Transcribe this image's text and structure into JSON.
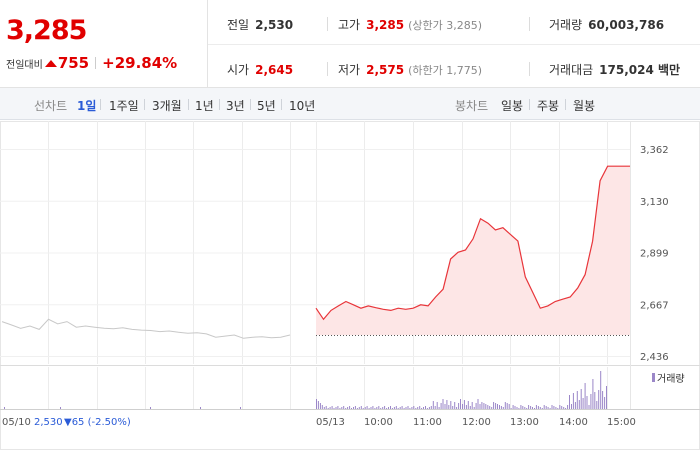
{
  "summary": {
    "price": "3,285",
    "change_label": "전일대비",
    "change_abs": "755",
    "change_pct": "+29.84%",
    "prev_close": {
      "label": "전일",
      "value": "2,530"
    },
    "open": {
      "label": "시가",
      "value": "2,645"
    },
    "high": {
      "label": "고가",
      "value": "3,285",
      "note": "(상한가 3,285)"
    },
    "low": {
      "label": "저가",
      "value": "2,575",
      "note": "(하한가 1,775)"
    },
    "volume": {
      "label": "거래량",
      "value": "60,003,786"
    },
    "turnover": {
      "label": "거래대금",
      "value": "175,024 백만"
    }
  },
  "toolbar": {
    "line_chart_label": "선차트",
    "periods": [
      "1일",
      "1주일",
      "3개월",
      "1년",
      "3년",
      "5년",
      "10년"
    ],
    "active_period": "1일",
    "candle_chart_label": "봉차트",
    "candle_periods": [
      "일봉",
      "주봉",
      "월봉"
    ]
  },
  "chart_data": {
    "type": "line",
    "y_ticks": [
      "3,362",
      "3,130",
      "2,899",
      "2,667",
      "2,436"
    ],
    "ylim": [
      2436,
      3362
    ],
    "x_ticks": [
      "05/13",
      "10:00",
      "11:00",
      "12:00",
      "13:00",
      "14:00",
      "15:00"
    ],
    "prev_day_label": "05/10",
    "prev_day_close": "2,530",
    "prev_day_change": "▼65 (-2.50%)",
    "volume_legend": "거래량",
    "colors": {
      "today": "#e8353a",
      "today_fill": "#fde6e6",
      "prev_day": "#c8c8c8",
      "volume": "#9b87c8"
    },
    "series": [
      {
        "name": "05/10",
        "values": [
          2590,
          2575,
          2560,
          2570,
          2555,
          2600,
          2580,
          2590,
          2565,
          2570,
          2565,
          2560,
          2558,
          2562,
          2555,
          2552,
          2550,
          2545,
          2548,
          2542,
          2538,
          2540,
          2535,
          2520,
          2525,
          2530,
          2515,
          2520,
          2522,
          2518,
          2520,
          2530
        ]
      },
      {
        "name": "05/13",
        "values": [
          2650,
          2600,
          2640,
          2660,
          2680,
          2665,
          2650,
          2660,
          2652,
          2645,
          2640,
          2650,
          2645,
          2650,
          2665,
          2660,
          2700,
          2735,
          2870,
          2900,
          2910,
          2960,
          3050,
          3030,
          3000,
          3010,
          2980,
          2950,
          2790,
          2720,
          2650,
          2660,
          2680,
          2690,
          2700,
          2740,
          2800,
          2950,
          3220,
          3285,
          3285,
          3285,
          3285
        ]
      }
    ]
  }
}
